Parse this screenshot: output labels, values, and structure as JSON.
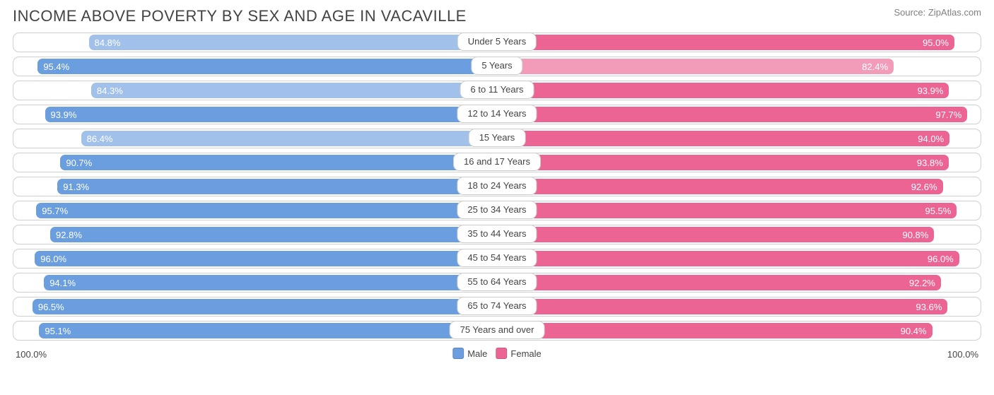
{
  "title": "INCOME ABOVE POVERTY BY SEX AND AGE IN VACAVILLE",
  "source": "Source: ZipAtlas.com",
  "colors": {
    "male_normal": "#6a9ede",
    "male_light": "#a2c1ea",
    "female_normal": "#ec6493",
    "female_light": "#f39cba",
    "border": "#d0d0d0",
    "text": "#444444",
    "bar_text": "#ffffff",
    "background": "#ffffff"
  },
  "max_percent": 100.0,
  "axis": {
    "left": "100.0%",
    "right": "100.0%"
  },
  "legend": {
    "male": "Male",
    "female": "Female"
  },
  "threshold_light": 90.0,
  "rows": [
    {
      "category": "Under 5 Years",
      "male": 84.8,
      "female": 95.0
    },
    {
      "category": "5 Years",
      "male": 95.4,
      "female": 82.4
    },
    {
      "category": "6 to 11 Years",
      "male": 84.3,
      "female": 93.9
    },
    {
      "category": "12 to 14 Years",
      "male": 93.9,
      "female": 97.7
    },
    {
      "category": "15 Years",
      "male": 86.4,
      "female": 94.0
    },
    {
      "category": "16 and 17 Years",
      "male": 90.7,
      "female": 93.8
    },
    {
      "category": "18 to 24 Years",
      "male": 91.3,
      "female": 92.6
    },
    {
      "category": "25 to 34 Years",
      "male": 95.7,
      "female": 95.5
    },
    {
      "category": "35 to 44 Years",
      "male": 92.8,
      "female": 90.8
    },
    {
      "category": "45 to 54 Years",
      "male": 96.0,
      "female": 96.0
    },
    {
      "category": "55 to 64 Years",
      "male": 94.1,
      "female": 92.2
    },
    {
      "category": "65 to 74 Years",
      "male": 96.5,
      "female": 93.6
    },
    {
      "category": "75 Years and over",
      "male": 95.1,
      "female": 90.4
    }
  ]
}
